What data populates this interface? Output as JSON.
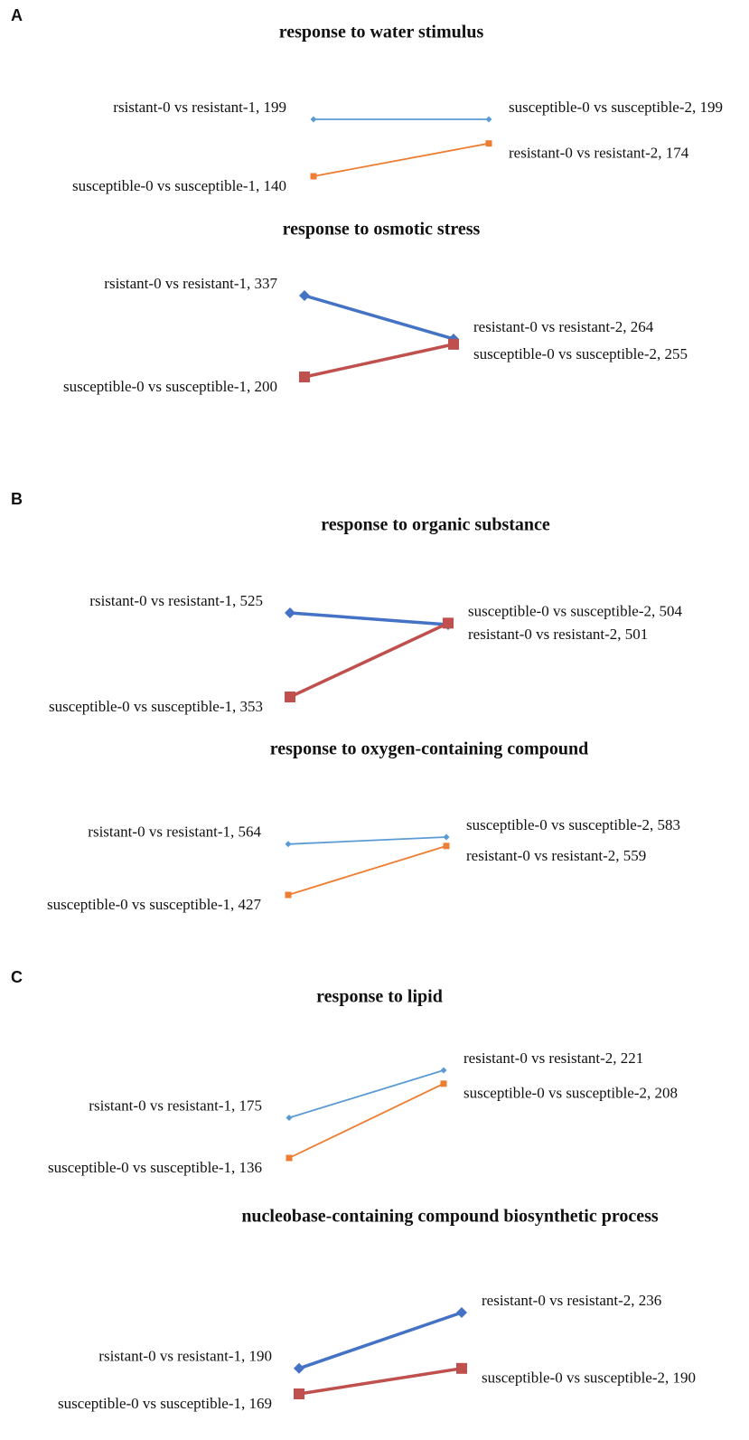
{
  "chart_data": [
    {
      "type": "line",
      "panel_label": "A",
      "title": "response to water stimulus",
      "style": "thin",
      "series": [
        {
          "color": "#5b9bd5",
          "marker": "diamond",
          "values": [
            199,
            199
          ],
          "value_labels": [
            "rsistant-0 vs resistant-1, 199",
            "susceptible-0 vs susceptible-2, 199"
          ]
        },
        {
          "color": "#ed7d31",
          "marker": "square",
          "values": [
            140,
            174
          ],
          "value_labels": [
            "susceptible-0 vs susceptible-1, 140",
            "resistant-0 vs resistant-2, 174"
          ]
        }
      ]
    },
    {
      "type": "line",
      "title": "response to osmotic stress",
      "style": "bold",
      "series": [
        {
          "color": "#4472c4",
          "marker": "diamond",
          "values": [
            337,
            264
          ],
          "value_labels": [
            "rsistant-0 vs resistant-1, 337",
            "resistant-0 vs resistant-2, 264"
          ]
        },
        {
          "color": "#c0504d",
          "marker": "square",
          "values": [
            200,
            255
          ],
          "value_labels": [
            "susceptible-0 vs susceptible-1, 200",
            "susceptible-0 vs susceptible-2, 255"
          ]
        }
      ]
    },
    {
      "type": "line",
      "panel_label": "B",
      "title": "response to organic substance",
      "style": "bold",
      "series": [
        {
          "color": "#4472c4",
          "marker": "diamond",
          "values": [
            525,
            501
          ],
          "value_labels": [
            "rsistant-0 vs resistant-1, 525",
            "resistant-0 vs resistant-2, 501"
          ]
        },
        {
          "color": "#c0504d",
          "marker": "square",
          "values": [
            353,
            504
          ],
          "value_labels": [
            "susceptible-0 vs susceptible-1, 353",
            "susceptible-0 vs susceptible-2, 504"
          ]
        }
      ]
    },
    {
      "type": "line",
      "title": "response to oxygen-containing compound",
      "style": "thin",
      "series": [
        {
          "color": "#5b9bd5",
          "marker": "diamond",
          "values": [
            564,
            583
          ],
          "value_labels": [
            "rsistant-0 vs resistant-1, 564",
            "susceptible-0 vs susceptible-2, 583"
          ]
        },
        {
          "color": "#ed7d31",
          "marker": "square",
          "values": [
            427,
            559
          ],
          "value_labels": [
            "susceptible-0 vs susceptible-1, 427",
            "resistant-0 vs resistant-2, 559"
          ]
        }
      ]
    },
    {
      "type": "line",
      "panel_label": "C",
      "title": "response to lipid",
      "style": "thin",
      "series": [
        {
          "color": "#5b9bd5",
          "marker": "diamond",
          "values": [
            175,
            221
          ],
          "value_labels": [
            "rsistant-0 vs resistant-1, 175",
            "resistant-0 vs resistant-2, 221"
          ]
        },
        {
          "color": "#ed7d31",
          "marker": "square",
          "values": [
            136,
            208
          ],
          "value_labels": [
            "susceptible-0 vs susceptible-1, 136",
            "susceptible-0 vs susceptible-2, 208"
          ]
        }
      ]
    },
    {
      "type": "line",
      "title": "nucleobase-containing compound biosynthetic process",
      "style": "bold",
      "series": [
        {
          "color": "#4472c4",
          "marker": "diamond",
          "values": [
            190,
            236
          ],
          "value_labels": [
            "rsistant-0 vs resistant-1, 190",
            "resistant-0 vs resistant-2, 236"
          ]
        },
        {
          "color": "#c0504d",
          "marker": "square",
          "values": [
            169,
            190
          ],
          "value_labels": [
            "susceptible-0 vs susceptible-1, 169",
            "susceptible-0 vs susceptible-2, 190"
          ]
        }
      ]
    }
  ]
}
